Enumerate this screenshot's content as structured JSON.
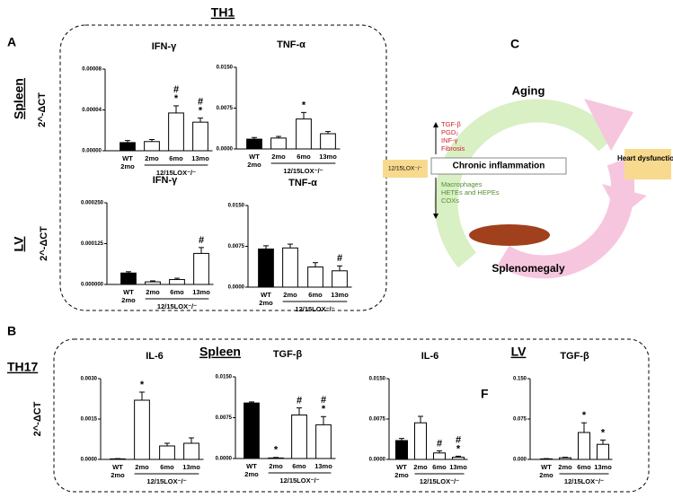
{
  "labels": {
    "panel_a": "A",
    "panel_b": "B",
    "panel_c": "C",
    "panel_f": "F",
    "th1": "TH1",
    "th17": "TH17",
    "spleen_a": "Spleen",
    "lv_a": "LV",
    "spleen_b": "Spleen",
    "lv_b": "LV"
  },
  "diagram": {
    "aging": "Aging",
    "up_items": [
      "TGF-β",
      "PGD₂",
      "INF-γ",
      "Fibrosis"
    ],
    "center": "Chronic inflammation",
    "down_items": [
      "Macrophages",
      "HETEs and HEPEs",
      "COXs"
    ],
    "bottom": "Splenomegaly",
    "left": "12/15LOX⁻/⁻",
    "right": "Heart dysfunction"
  },
  "chart_data": [
    {
      "type": "bar",
      "title": "IFN-γ",
      "ylabel": "2^-ΔCT",
      "categories": [
        "WT",
        "2mo",
        "6mo",
        "13mo"
      ],
      "control_age": "2mo",
      "group_label": "12/15LOX⁻/⁻",
      "colors": [
        "#000000",
        "#ffffff",
        "#ffffff",
        "#ffffff"
      ],
      "values": [
        8e-06,
        9e-06,
        3.7e-05,
        2.8e-05
      ],
      "errors": [
        2e-06,
        2e-06,
        7e-06,
        4e-06
      ],
      "annotations": [
        null,
        null,
        [
          "#",
          "*"
        ],
        [
          "#",
          "*"
        ]
      ],
      "ylim": [
        0,
        8e-05
      ],
      "yticks": [
        {
          "value": 0,
          "label": "0.00000"
        },
        {
          "value": 4e-05,
          "label": "0.00004"
        },
        {
          "value": 8e-05,
          "label": "0.00008"
        }
      ]
    },
    {
      "type": "bar",
      "title": "TNF-α",
      "categories": [
        "WT",
        "2mo",
        "6mo",
        "13mo"
      ],
      "control_age": "2mo",
      "group_label": "12/15LOX⁻/⁻",
      "colors": [
        "#000000",
        "#ffffff",
        "#ffffff",
        "#ffffff"
      ],
      "values": [
        0.0018,
        0.002,
        0.0055,
        0.0028
      ],
      "errors": [
        0.0003,
        0.0003,
        0.0012,
        0.0004
      ],
      "annotations": [
        null,
        null,
        [
          "*"
        ],
        null
      ],
      "ylim": [
        0,
        0.015
      ],
      "yticks": [
        {
          "value": 0,
          "label": "0.0000"
        },
        {
          "value": 0.0075,
          "label": "0.0075"
        },
        {
          "value": 0.015,
          "label": "0.0150"
        }
      ]
    },
    {
      "type": "bar",
      "title": "IFN-γ",
      "ylabel": "2^-ΔCT",
      "categories": [
        "WT",
        "2mo",
        "6mo",
        "13mo"
      ],
      "control_age": "2mo",
      "group_label": "12/15LOX⁻/⁻",
      "colors": [
        "#000000",
        "#ffffff",
        "#ffffff",
        "#ffffff"
      ],
      "values": [
        3.5e-05,
        8e-06,
        1.5e-05,
        9.5e-05
      ],
      "errors": [
        4e-06,
        3e-06,
        4e-06,
        1.8e-05
      ],
      "annotations": [
        null,
        null,
        null,
        [
          "#"
        ]
      ],
      "ylim": [
        0,
        0.00025
      ],
      "yticks": [
        {
          "value": 0,
          "label": "0.000000"
        },
        {
          "value": 0.000125,
          "label": "0.000125"
        },
        {
          "value": 0.00025,
          "label": "0.000250"
        }
      ]
    },
    {
      "type": "bar",
      "title": "TNF-α",
      "categories": [
        "WT",
        "2mo",
        "6mo",
        "13mo"
      ],
      "control_age": "2mo",
      "group_label": "12/15LOX⁻/⁻",
      "colors": [
        "#000000",
        "#ffffff",
        "#ffffff",
        "#ffffff"
      ],
      "values": [
        0.007,
        0.0072,
        0.0037,
        0.003
      ],
      "errors": [
        0.0006,
        0.0007,
        0.0008,
        0.0009
      ],
      "annotations": [
        null,
        null,
        null,
        [
          "#"
        ]
      ],
      "ylim": [
        0,
        0.015
      ],
      "yticks": [
        {
          "value": 0,
          "label": "0.0000"
        },
        {
          "value": 0.0075,
          "label": "0.0075"
        },
        {
          "value": 0.015,
          "label": "0.0150"
        }
      ]
    },
    {
      "type": "bar",
      "title": "IL-6",
      "ylabel": "2^-ΔCT",
      "categories": [
        "WT",
        "2mo",
        "6mo",
        "13mo"
      ],
      "control_age": "2mo",
      "group_label": "12/15LOX⁻/⁻",
      "colors": [
        "#000000",
        "#ffffff",
        "#ffffff",
        "#ffffff"
      ],
      "values": [
        2e-05,
        0.0022,
        0.0005,
        0.0006
      ],
      "errors": [
        1e-05,
        0.0003,
        0.0001,
        0.0002
      ],
      "annotations": [
        null,
        [
          "*"
        ],
        null,
        null
      ],
      "ylim": [
        0,
        0.003
      ],
      "yticks": [
        {
          "value": 0,
          "label": "0.0000"
        },
        {
          "value": 0.0015,
          "label": "0.0015"
        },
        {
          "value": 0.003,
          "label": "0.0030"
        }
      ]
    },
    {
      "type": "bar",
      "title": "TGF-β",
      "categories": [
        "WT",
        "2mo",
        "6mo",
        "13mo"
      ],
      "control_age": "2mo",
      "group_label": "12/15LOX⁻/⁻",
      "colors": [
        "#000000",
        "#ffffff",
        "#ffffff",
        "#ffffff"
      ],
      "values": [
        0.0102,
        0.0001,
        0.008,
        0.0062
      ],
      "errors": [
        0.0002,
        0.0001,
        0.0013,
        0.0015
      ],
      "annotations": [
        null,
        [
          "*"
        ],
        [
          "#"
        ],
        [
          "#",
          "*"
        ]
      ],
      "ylim": [
        0,
        0.015
      ],
      "yticks": [
        {
          "value": 0,
          "label": "0.0000"
        },
        {
          "value": 0.0075,
          "label": "0.0075"
        },
        {
          "value": 0.015,
          "label": "0.0150"
        }
      ]
    },
    {
      "type": "bar",
      "title": "IL-6",
      "categories": [
        "WT",
        "2mo",
        "6mo",
        "13mo"
      ],
      "control_age": "2mo",
      "group_label": "12/15LOX⁻/⁻",
      "colors": [
        "#000000",
        "#ffffff",
        "#ffffff",
        "#ffffff"
      ],
      "values": [
        0.0035,
        0.0068,
        0.0012,
        0.0004
      ],
      "errors": [
        0.0004,
        0.0012,
        0.0004,
        0.0002
      ],
      "annotations": [
        null,
        null,
        [
          "#"
        ],
        [
          "#",
          "*"
        ]
      ],
      "ylim": [
        0,
        0.015
      ],
      "yticks": [
        {
          "value": 0,
          "label": "0.0000"
        },
        {
          "value": 0.0075,
          "label": "0.0075"
        },
        {
          "value": 0.015,
          "label": "0.0150"
        }
      ]
    },
    {
      "type": "bar",
      "title": "TGF-β",
      "categories": [
        "WT",
        "2mo",
        "6mo",
        "13mo"
      ],
      "control_age": "2mo",
      "group_label": "12/15LOX⁻/⁻",
      "colors": [
        "#000000",
        "#ffffff",
        "#ffffff",
        "#ffffff"
      ],
      "values": [
        0.001,
        0.003,
        0.05,
        0.028
      ],
      "errors": [
        0.0005,
        0.001,
        0.018,
        0.008
      ],
      "annotations": [
        null,
        null,
        [
          "*"
        ],
        [
          "*"
        ]
      ],
      "ylim": [
        0,
        0.15
      ],
      "yticks": [
        {
          "value": 0,
          "label": "0.000"
        },
        {
          "value": 0.075,
          "label": "0.075"
        },
        {
          "value": 0.15,
          "label": "0.150"
        }
      ]
    }
  ]
}
